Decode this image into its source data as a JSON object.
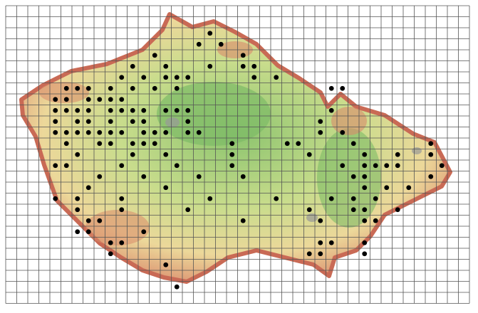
{
  "occurrences": [
    [
      18,
      2
    ],
    [
      17,
      3
    ],
    [
      19,
      3
    ],
    [
      13,
      4
    ],
    [
      21,
      4
    ],
    [
      11,
      5
    ],
    [
      14,
      5
    ],
    [
      18,
      5
    ],
    [
      21,
      5
    ],
    [
      22,
      5
    ],
    [
      10,
      6
    ],
    [
      12,
      6
    ],
    [
      14,
      6
    ],
    [
      15,
      6
    ],
    [
      16,
      6
    ],
    [
      22,
      6
    ],
    [
      24,
      6
    ],
    [
      5,
      7
    ],
    [
      6,
      7
    ],
    [
      7,
      7
    ],
    [
      9,
      7
    ],
    [
      11,
      7
    ],
    [
      13,
      7
    ],
    [
      15,
      7
    ],
    [
      29,
      7
    ],
    [
      30,
      7
    ],
    [
      4,
      8
    ],
    [
      5,
      8
    ],
    [
      7,
      8
    ],
    [
      8,
      8
    ],
    [
      9,
      8
    ],
    [
      10,
      8
    ],
    [
      4,
      9
    ],
    [
      5,
      9
    ],
    [
      6,
      9
    ],
    [
      7,
      9
    ],
    [
      9,
      9
    ],
    [
      10,
      9
    ],
    [
      11,
      9
    ],
    [
      12,
      9
    ],
    [
      14,
      9
    ],
    [
      15,
      9
    ],
    [
      16,
      9
    ],
    [
      29,
      9
    ],
    [
      4,
      10
    ],
    [
      6,
      10
    ],
    [
      7,
      10
    ],
    [
      9,
      10
    ],
    [
      11,
      10
    ],
    [
      12,
      10
    ],
    [
      16,
      10
    ],
    [
      28,
      10
    ],
    [
      4,
      11
    ],
    [
      5,
      11
    ],
    [
      6,
      11
    ],
    [
      7,
      11
    ],
    [
      8,
      11
    ],
    [
      9,
      11
    ],
    [
      10,
      11
    ],
    [
      12,
      11
    ],
    [
      13,
      11
    ],
    [
      14,
      11
    ],
    [
      16,
      11
    ],
    [
      17,
      11
    ],
    [
      28,
      11
    ],
    [
      30,
      11
    ],
    [
      5,
      12
    ],
    [
      8,
      12
    ],
    [
      9,
      12
    ],
    [
      11,
      12
    ],
    [
      12,
      12
    ],
    [
      13,
      12
    ],
    [
      20,
      12
    ],
    [
      25,
      12
    ],
    [
      26,
      12
    ],
    [
      31,
      12
    ],
    [
      38,
      12
    ],
    [
      6,
      13
    ],
    [
      11,
      13
    ],
    [
      14,
      13
    ],
    [
      20,
      13
    ],
    [
      27,
      13
    ],
    [
      32,
      13
    ],
    [
      35,
      13
    ],
    [
      38,
      13
    ],
    [
      4,
      14
    ],
    [
      5,
      14
    ],
    [
      10,
      14
    ],
    [
      15,
      14
    ],
    [
      20,
      14
    ],
    [
      30,
      14
    ],
    [
      32,
      14
    ],
    [
      33,
      14
    ],
    [
      34,
      14
    ],
    [
      35,
      14
    ],
    [
      39,
      14
    ],
    [
      8,
      15
    ],
    [
      12,
      15
    ],
    [
      17,
      15
    ],
    [
      21,
      15
    ],
    [
      31,
      15
    ],
    [
      32,
      15
    ],
    [
      38,
      15
    ],
    [
      7,
      16
    ],
    [
      14,
      16
    ],
    [
      32,
      16
    ],
    [
      34,
      16
    ],
    [
      36,
      16
    ],
    [
      4,
      17
    ],
    [
      6,
      17
    ],
    [
      10,
      17
    ],
    [
      18,
      17
    ],
    [
      24,
      17
    ],
    [
      29,
      17
    ],
    [
      31,
      17
    ],
    [
      33,
      17
    ],
    [
      6,
      18
    ],
    [
      10,
      18
    ],
    [
      16,
      18
    ],
    [
      27,
      18
    ],
    [
      31,
      18
    ],
    [
      32,
      18
    ],
    [
      35,
      18
    ],
    [
      7,
      19
    ],
    [
      8,
      19
    ],
    [
      21,
      19
    ],
    [
      28,
      19
    ],
    [
      32,
      19
    ],
    [
      33,
      19
    ],
    [
      6,
      20
    ],
    [
      7,
      20
    ],
    [
      12,
      20
    ],
    [
      9,
      21
    ],
    [
      10,
      21
    ],
    [
      28,
      21
    ],
    [
      29,
      21
    ],
    [
      32,
      21
    ],
    [
      9,
      22
    ],
    [
      27,
      22
    ],
    [
      28,
      22
    ],
    [
      32,
      22
    ],
    [
      14,
      23
    ],
    [
      15,
      25
    ]
  ]
}
